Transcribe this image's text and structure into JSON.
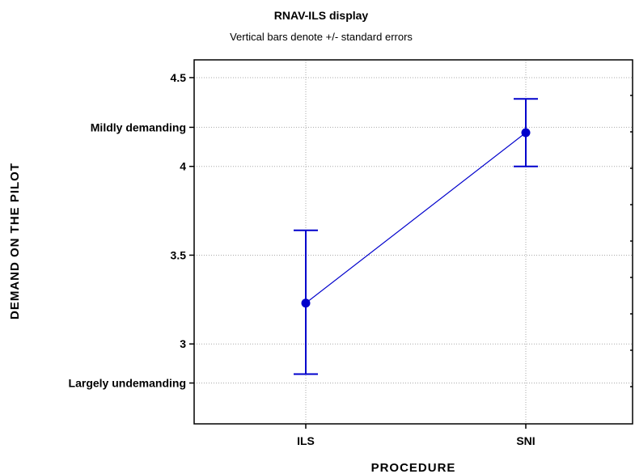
{
  "chart_data": {
    "type": "line",
    "title": "RNAV-ILS display",
    "subtitle": "Vertical bars denote +/- standard errors",
    "xlabel": "PROCEDURE",
    "ylabel": "DEMAND ON THE PILOT",
    "categories": [
      "ILS",
      "SNI"
    ],
    "series": [
      {
        "values": [
          3.23,
          4.19
        ],
        "error_low": [
          2.83,
          4.0
        ],
        "error_high": [
          3.64,
          4.38
        ]
      }
    ],
    "ylim": [
      2.55,
      4.6
    ],
    "y_ticks": [
      {
        "value": 2.78,
        "label": "Largely undemanding"
      },
      {
        "value": 3.0,
        "label": "3"
      },
      {
        "value": 3.5,
        "label": "3.5"
      },
      {
        "value": 4.0,
        "label": "4"
      },
      {
        "value": 4.22,
        "label": "Mildly demanding"
      },
      {
        "value": 4.5,
        "label": "4.5"
      }
    ],
    "grid": true,
    "colors": {
      "series": "#0000cc",
      "grid": "#aaaaaa",
      "axis": "#000000"
    }
  }
}
